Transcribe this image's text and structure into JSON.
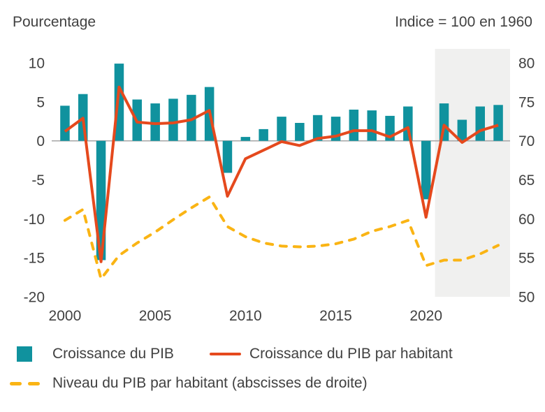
{
  "header": {
    "left_title": "Pourcentage",
    "right_title": "Indice = 100 en 1960"
  },
  "legend": {
    "items": [
      {
        "label": "Croissance du PIB",
        "swatch": "teal-square"
      },
      {
        "label": "Croissance du PIB par habitant",
        "swatch": "red-line"
      },
      {
        "label": "Niveau du PIB par habitant (abscisses de droite)",
        "swatch": "yellow-dashed-line"
      }
    ]
  },
  "colors": {
    "bar_teal": "#10929e",
    "line_red": "#e5491d",
    "line_yellow": "#fab414",
    "forecast_band": "#f0f0ef",
    "zero_line": "#a9a9a9",
    "text": "#414141"
  },
  "chart_data": {
    "type": "bar+line combo, dual axis",
    "x": [
      2000,
      2001,
      2002,
      2003,
      2004,
      2005,
      2006,
      2007,
      2008,
      2009,
      2010,
      2011,
      2012,
      2013,
      2014,
      2015,
      2016,
      2017,
      2018,
      2019,
      2020,
      2021,
      2022,
      2023,
      2024
    ],
    "x_ticks": [
      2000,
      2005,
      2010,
      2015,
      2020
    ],
    "left_axis": {
      "title": "Pourcentage",
      "range": [
        -20,
        10
      ],
      "ticks": [
        10,
        5,
        0,
        -5,
        -10,
        -15,
        -20
      ]
    },
    "right_axis": {
      "title": "Indice = 100 en 1960",
      "range": [
        50,
        80
      ],
      "ticks": [
        80,
        75,
        70,
        65,
        60,
        55,
        50
      ]
    },
    "forecast_band": {
      "start_year": 2021,
      "end_year": 2024
    },
    "grid": "zero line only",
    "legend_position": "bottom",
    "series": [
      {
        "name": "Croissance du PIB",
        "type": "bar",
        "axis": "left",
        "values": [
          4.5,
          6.0,
          -15.3,
          9.9,
          5.3,
          4.8,
          5.4,
          5.9,
          6.9,
          -4.1,
          0.5,
          1.5,
          3.1,
          2.3,
          3.3,
          3.1,
          4.0,
          3.9,
          3.2,
          4.4,
          -7.5,
          4.8,
          2.7,
          4.4,
          4.6
        ]
      },
      {
        "name": "Croissance du PIB par habitant",
        "type": "line",
        "axis": "left",
        "values": [
          1.2,
          2.9,
          -15.5,
          6.9,
          2.4,
          2.2,
          2.3,
          2.7,
          3.9,
          -7.1,
          -2.3,
          -1.2,
          -0.1,
          -0.6,
          0.3,
          0.6,
          1.3,
          1.3,
          0.5,
          1.7,
          -9.8,
          2.0,
          -0.2,
          1.3,
          2.0
        ]
      },
      {
        "name": "Niveau du PIB par habitant (abscisses de droite)",
        "type": "dashed-line",
        "axis": "right",
        "values": [
          59.8,
          61.2,
          52.3,
          55.3,
          56.9,
          58.3,
          59.9,
          61.4,
          62.8,
          59.0,
          57.7,
          56.9,
          56.5,
          56.4,
          56.5,
          56.8,
          57.4,
          58.4,
          59.0,
          59.8,
          54.0,
          54.7,
          54.7,
          55.5,
          56.6
        ]
      }
    ]
  }
}
